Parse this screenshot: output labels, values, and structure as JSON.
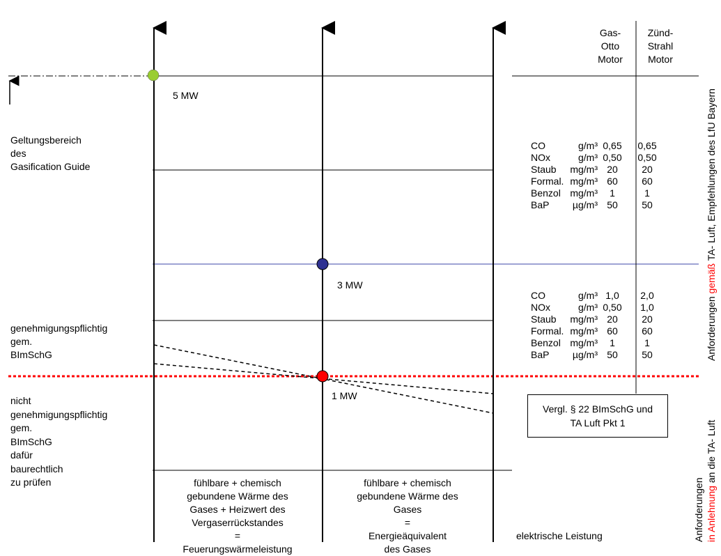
{
  "header": {
    "gas_otto": [
      "Gas-",
      "Otto",
      "Motor"
    ],
    "zuend_strahl": [
      "Zünd-",
      "Strahl",
      "Motor"
    ]
  },
  "levels": {
    "mw5": "5 MW",
    "mw3": "3 MW",
    "mw1": "1 MW"
  },
  "left_labels": {
    "scope": [
      "Geltungsbereich",
      "des",
      "Gasification Guide"
    ],
    "approval_required": [
      "genehmigungspflichtig",
      "gem.",
      "BImSchG"
    ],
    "not_required": [
      "nicht",
      "genehmigungspflichtig",
      "gem.",
      "BImSchG",
      "dafür",
      "baurechtlich",
      "zu prüfen"
    ]
  },
  "limits_upper": [
    {
      "name": "CO",
      "unit": "g/m³",
      "gas_otto": "0,65",
      "zuend_strahl": "0,65"
    },
    {
      "name": "NOx",
      "unit": "g/m³",
      "gas_otto": "0,50",
      "zuend_strahl": "0,50"
    },
    {
      "name": "Staub",
      "unit": "mg/m³",
      "gas_otto": "20",
      "zuend_strahl": "20"
    },
    {
      "name": "Formal.",
      "unit": "mg/m³",
      "gas_otto": "60",
      "zuend_strahl": "60"
    },
    {
      "name": "Benzol",
      "unit": "mg/m³",
      "gas_otto": "1",
      "zuend_strahl": "1"
    },
    {
      "name": "BaP",
      "unit": "µg/m³",
      "gas_otto": "50",
      "zuend_strahl": "50"
    }
  ],
  "limits_lower": [
    {
      "name": "CO",
      "unit": "g/m³",
      "gas_otto": "1,0",
      "zuend_strahl": "2,0"
    },
    {
      "name": "NOx",
      "unit": "g/m³",
      "gas_otto": "0,50",
      "zuend_strahl": "1,0"
    },
    {
      "name": "Staub",
      "unit": "mg/m³",
      "gas_otto": "20",
      "zuend_strahl": "20"
    },
    {
      "name": "Formal.",
      "unit": "mg/m³",
      "gas_otto": "60",
      "zuend_strahl": "60"
    },
    {
      "name": "Benzol",
      "unit": "mg/m³",
      "gas_otto": "1",
      "zuend_strahl": "1"
    },
    {
      "name": "BaP",
      "unit": "µg/m³",
      "gas_otto": "50",
      "zuend_strahl": "50"
    }
  ],
  "note_box": [
    "Vergl. § 22 BImSchG und",
    "TA Luft Pkt 1"
  ],
  "axis_descriptions": {
    "axis1": [
      "fühlbare + chemisch",
      "gebundene Wärme des",
      "Gases + Heizwert des",
      "Vergaserrückstandes",
      "=",
      "Feuerungswärmeleistung"
    ],
    "axis2": [
      "fühlbare + chemisch",
      "gebundene Wärme des",
      "Gases",
      "=",
      "Energieäquivalent",
      "des Gases"
    ],
    "axis3": "elektrische Leistung"
  },
  "vertical_texts": {
    "upper": {
      "part1": "Anforderungen ",
      "part2_red": "gemäß",
      "part3": " TA- Luft, Empfehlungen des LfU Bayern"
    },
    "lower_line1": "Anforderungen",
    "lower_line2": {
      "part1_red": "in Anlehnung",
      "part2": " an die TA- Luft"
    }
  },
  "colors": {
    "point_5mw": "#9acd32",
    "point_3mw": "#2e3192",
    "point_1mw": "#ff0000",
    "line_3mw": "#3c46a8",
    "threshold_line": "#ff0000",
    "accent_red_text": "#ff0000"
  }
}
